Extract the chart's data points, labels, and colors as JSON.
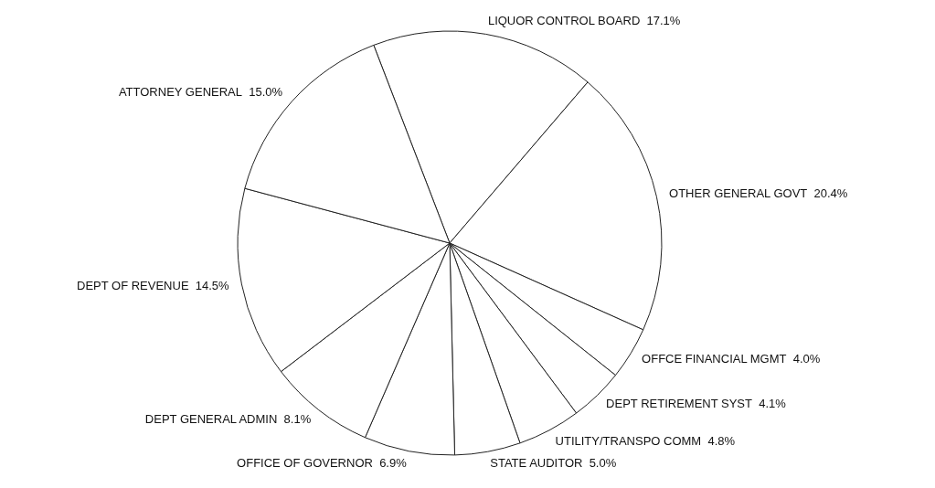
{
  "chart_data": {
    "type": "pie",
    "categories": [
      "LIQUOR CONTROL BOARD",
      "OTHER GENERAL GOVT",
      "OFFCE FINANCIAL MGMT",
      "DEPT RETIREMENT SYST",
      "UTILITY/TRANSPO COMM",
      "STATE AUDITOR",
      "OFFICE OF GOVERNOR",
      "DEPT GENERAL ADMIN",
      "DEPT OF REVENUE",
      "ATTORNEY GENERAL"
    ],
    "values": [
      17.1,
      20.4,
      4.0,
      4.1,
      4.8,
      5.0,
      6.9,
      8.1,
      14.5,
      15.0
    ],
    "value_labels": [
      "17.1%",
      "20.4%",
      "4.0%",
      "4.1%",
      "4.8%",
      "5.0%",
      "6.9%",
      "8.1%",
      "14.5%",
      "15.0%"
    ],
    "colors": [
      "#ffffff",
      "#ffffff",
      "#ffffff",
      "#ffffff",
      "#ffffff",
      "#ffffff",
      "#ffffff",
      "#ffffff",
      "#ffffff",
      "#ffffff"
    ]
  }
}
